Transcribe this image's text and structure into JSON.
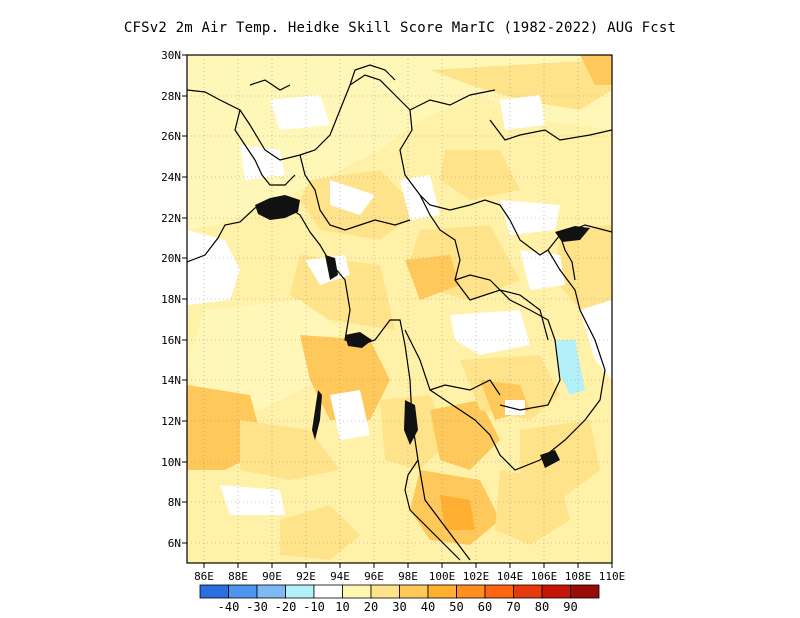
{
  "title": "CFSv2  2m Air Temp. Heidke Skill Score MarIC (1982-2022) AUG Fcst",
  "lon_ticks": [
    "86E",
    "88E",
    "90E",
    "92E",
    "94E",
    "96E",
    "98E",
    "100E",
    "102E",
    "104E",
    "106E",
    "108E",
    "110E"
  ],
  "lat_ticks": [
    "30N",
    "28N",
    "26N",
    "24N",
    "22N",
    "20N",
    "18N",
    "16N",
    "14N",
    "12N",
    "10N",
    "8N",
    "6N"
  ],
  "colorbar": {
    "colors": [
      "#2a6fe0",
      "#4c95ee",
      "#7db9f5",
      "#b4f0fa",
      "#ffffff",
      "#fff7b0",
      "#ffe38a",
      "#ffc85a",
      "#ffb030",
      "#ff8f1f",
      "#ff6410",
      "#e63a0c",
      "#c41508",
      "#9a0a06"
    ],
    "labels": [
      "-40",
      "-30",
      "-20",
      "-10",
      "10",
      "20",
      "30",
      "40",
      "50",
      "60",
      "70",
      "80",
      "90"
    ]
  },
  "chart_data": {
    "type": "heatmap",
    "title": "CFSv2  2m Air Temp. Heidke Skill Score MarIC (1982-2022) AUG Fcst",
    "xlabel": "",
    "ylabel": "",
    "x_range_deg": [
      85,
      110
    ],
    "y_range_deg": [
      5,
      30
    ],
    "grid": true,
    "legend": "bottom colorbar",
    "color_scale_levels": [
      -40,
      -30,
      -20,
      -10,
      10,
      20,
      30,
      40,
      50,
      60,
      70,
      80,
      90
    ],
    "regions": [
      {
        "lon": 95.5,
        "lat": 13.5,
        "value": 30
      },
      {
        "lon": 86.5,
        "lat": 11.5,
        "value": 30
      },
      {
        "lon": 101,
        "lat": 7.5,
        "value": 40
      },
      {
        "lon": 100.5,
        "lat": 10.5,
        "value": 30
      },
      {
        "lon": 105.5,
        "lat": 12.0,
        "value": 40
      },
      {
        "lon": 108.5,
        "lat": 29.0,
        "value": 40
      },
      {
        "lon": 105.0,
        "lat": 15.5,
        "value": -10
      },
      {
        "lon": 91.0,
        "lat": 21.0,
        "value": 10
      },
      {
        "lon": 88.5,
        "lat": 18.5,
        "value": 10
      }
    ]
  }
}
